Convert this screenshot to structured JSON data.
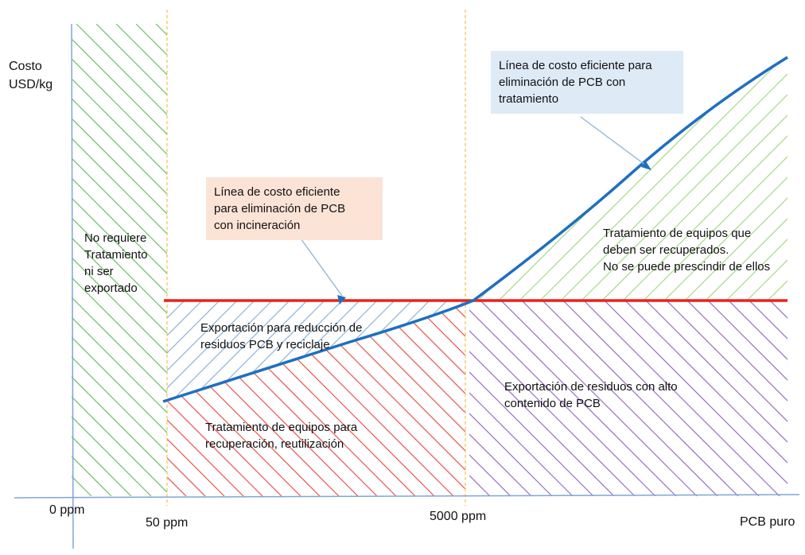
{
  "axis": {
    "y_label_line1": "Costo",
    "y_label_line2": "USD/kg",
    "ticks": [
      "0 ppm",
      "50 ppm",
      "5000 ppm",
      "PCB puro"
    ]
  },
  "regions": {
    "no_treatment": [
      "No requiere",
      "Tratamiento",
      "ni ser",
      "exportado"
    ],
    "export_reduction": [
      "Exportación para reducción de",
      "residuos PCB y reciclaje"
    ],
    "equipment_recovery": [
      "Tratamiento de equipos para",
      "recuperación, reutilización"
    ],
    "export_high": [
      "Exportación de residuos con alto",
      "contenido de PCB"
    ],
    "treatment_recovered": [
      "Tratamiento de equipos que",
      "deben ser recuperados.",
      "No se puede prescindir de ellos"
    ]
  },
  "callouts": {
    "incineration": [
      "Línea de costo eficiente",
      "para eliminación de PCB",
      "con incineración"
    ],
    "treatment": [
      "Línea de costo eficiente para",
      "eliminación de PCB con",
      "tratamiento"
    ]
  },
  "colors": {
    "incineration_line": "#e8231c",
    "treatment_curve": "#1f6fc0",
    "axis": "#7fa6d6",
    "guide": "#f2c14a",
    "hatch_green": "#6fbf6a",
    "hatch_green_light": "#a8d98a",
    "hatch_blue": "#8fb3da",
    "hatch_red": "#e8564f",
    "hatch_purple": "#9a6fc4",
    "callout_incineration_bg": "#fbe3d6",
    "callout_treatment_bg": "#deeaf6"
  }
}
